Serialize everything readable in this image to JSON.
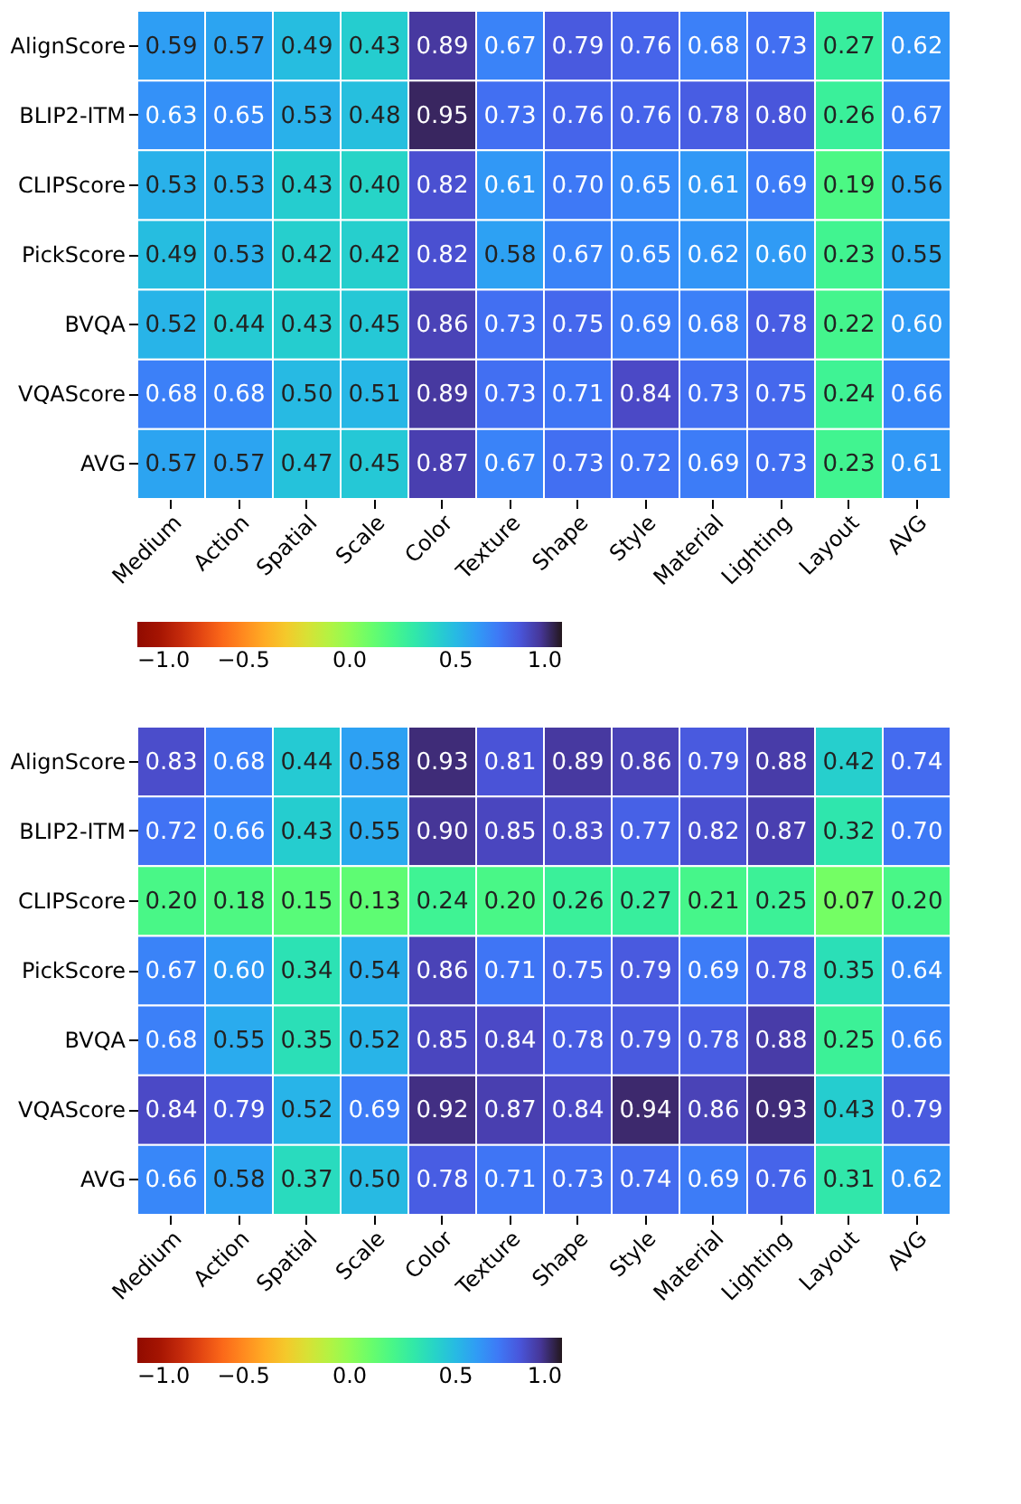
{
  "chart_data": [
    {
      "type": "heatmap",
      "categories": [
        "Medium",
        "Action",
        "Spatial",
        "Scale",
        "Color",
        "Texture",
        "Shape",
        "Style",
        "Material",
        "Lighting",
        "Layout",
        "AVG"
      ],
      "y_categories": [
        "AlignScore",
        "BLIP2-ITM",
        "CLIPScore",
        "PickScore",
        "BVQA",
        "VQAScore",
        "AVG"
      ],
      "cells": [
        [
          0.59,
          0.57,
          0.49,
          0.43,
          0.89,
          0.67,
          0.79,
          0.76,
          0.68,
          0.73,
          0.27,
          0.62
        ],
        [
          0.63,
          0.65,
          0.53,
          0.48,
          0.95,
          0.73,
          0.76,
          0.76,
          0.78,
          0.8,
          0.26,
          0.67
        ],
        [
          0.53,
          0.53,
          0.43,
          0.4,
          0.82,
          0.61,
          0.7,
          0.65,
          0.61,
          0.69,
          0.19,
          0.56
        ],
        [
          0.49,
          0.53,
          0.42,
          0.42,
          0.82,
          0.58,
          0.67,
          0.65,
          0.62,
          0.6,
          0.23,
          0.55
        ],
        [
          0.52,
          0.44,
          0.43,
          0.45,
          0.86,
          0.73,
          0.75,
          0.69,
          0.68,
          0.78,
          0.22,
          0.6
        ],
        [
          0.68,
          0.68,
          0.5,
          0.51,
          0.89,
          0.73,
          0.71,
          0.84,
          0.73,
          0.75,
          0.24,
          0.66
        ],
        [
          0.57,
          0.57,
          0.47,
          0.45,
          0.87,
          0.67,
          0.73,
          0.72,
          0.69,
          0.73,
          0.23,
          0.61
        ]
      ],
      "cell_labels": [
        [
          "0.59",
          "0.57",
          "0.49",
          "0.43",
          "0.89",
          "0.67",
          "0.79",
          "0.76",
          "0.68",
          "0.73",
          "0.27",
          "0.62"
        ],
        [
          "0.63",
          "0.65",
          "0.53",
          "0.48",
          "0.95",
          "0.73",
          "0.76",
          "0.76",
          "0.78",
          "0.80",
          "0.26",
          "0.67"
        ],
        [
          "0.53",
          "0.53",
          "0.43",
          "0.40",
          "0.82",
          "0.61",
          "0.70",
          "0.65",
          "0.61",
          "0.69",
          "0.19",
          "0.56"
        ],
        [
          "0.49",
          "0.53",
          "0.42",
          "0.42",
          "0.82",
          "0.58",
          "0.67",
          "0.65",
          "0.62",
          "0.60",
          "0.23",
          "0.55"
        ],
        [
          "0.52",
          "0.44",
          "0.43",
          "0.45",
          "0.86",
          "0.73",
          "0.75",
          "0.69",
          "0.68",
          "0.78",
          "0.22",
          "0.60"
        ],
        [
          "0.68",
          "0.68",
          "0.50",
          "0.51",
          "0.89",
          "0.73",
          "0.71",
          "0.84",
          "0.73",
          "0.75",
          "0.24",
          "0.66"
        ],
        [
          "0.57",
          "0.57",
          "0.47",
          "0.45",
          "0.87",
          "0.67",
          "0.73",
          "0.72",
          "0.69",
          "0.73",
          "0.23",
          "0.61"
        ]
      ],
      "clim": [
        -1,
        1
      ],
      "cticks": [
        {
          "value": -1,
          "label": "−1.0"
        },
        {
          "value": -0.5,
          "label": "−0.5"
        },
        {
          "value": 0,
          "label": "0.0"
        },
        {
          "value": 0.5,
          "label": "0.5"
        },
        {
          "value": 1,
          "label": "1.0"
        }
      ]
    },
    {
      "type": "heatmap",
      "categories": [
        "Medium",
        "Action",
        "Spatial",
        "Scale",
        "Color",
        "Texture",
        "Shape",
        "Style",
        "Material",
        "Lighting",
        "Layout",
        "AVG"
      ],
      "y_categories": [
        "AlignScore",
        "BLIP2-ITM",
        "CLIPScore",
        "PickScore",
        "BVQA",
        "VQAScore",
        "AVG"
      ],
      "cells": [
        [
          0.83,
          0.68,
          0.44,
          0.58,
          0.93,
          0.81,
          0.89,
          0.86,
          0.79,
          0.88,
          0.42,
          0.74
        ],
        [
          0.72,
          0.66,
          0.43,
          0.55,
          0.9,
          0.85,
          0.83,
          0.77,
          0.82,
          0.87,
          0.32,
          0.7
        ],
        [
          0.2,
          0.18,
          0.15,
          0.13,
          0.24,
          0.2,
          0.26,
          0.27,
          0.21,
          0.25,
          0.07,
          0.2
        ],
        [
          0.67,
          0.6,
          0.34,
          0.54,
          0.86,
          0.71,
          0.75,
          0.79,
          0.69,
          0.78,
          0.35,
          0.64
        ],
        [
          0.68,
          0.55,
          0.35,
          0.52,
          0.85,
          0.84,
          0.78,
          0.79,
          0.78,
          0.88,
          0.25,
          0.66
        ],
        [
          0.84,
          0.79,
          0.52,
          0.69,
          0.92,
          0.87,
          0.84,
          0.94,
          0.86,
          0.93,
          0.43,
          0.79
        ],
        [
          0.66,
          0.58,
          0.37,
          0.5,
          0.78,
          0.71,
          0.73,
          0.74,
          0.69,
          0.76,
          0.31,
          0.62
        ]
      ],
      "cell_labels": [
        [
          "0.83",
          "0.68",
          "0.44",
          "0.58",
          "0.93",
          "0.81",
          "0.89",
          "0.86",
          "0.79",
          "0.88",
          "0.42",
          "0.74"
        ],
        [
          "0.72",
          "0.66",
          "0.43",
          "0.55",
          "0.90",
          "0.85",
          "0.83",
          "0.77",
          "0.82",
          "0.87",
          "0.32",
          "0.70"
        ],
        [
          "0.20",
          "0.18",
          "0.15",
          "0.13",
          "0.24",
          "0.20",
          "0.26",
          "0.27",
          "0.21",
          "0.25",
          "0.07",
          "0.20"
        ],
        [
          "0.67",
          "0.60",
          "0.34",
          "0.54",
          "0.86",
          "0.71",
          "0.75",
          "0.79",
          "0.69",
          "0.78",
          "0.35",
          "0.64"
        ],
        [
          "0.68",
          "0.55",
          "0.35",
          "0.52",
          "0.85",
          "0.84",
          "0.78",
          "0.79",
          "0.78",
          "0.88",
          "0.25",
          "0.66"
        ],
        [
          "0.84",
          "0.79",
          "0.52",
          "0.69",
          "0.92",
          "0.87",
          "0.84",
          "0.94",
          "0.86",
          "0.93",
          "0.43",
          "0.79"
        ],
        [
          "0.66",
          "0.58",
          "0.37",
          "0.50",
          "0.78",
          "0.71",
          "0.73",
          "0.74",
          "0.69",
          "0.76",
          "0.31",
          "0.62"
        ]
      ],
      "clim": [
        -1,
        1
      ],
      "cticks": [
        {
          "value": -1,
          "label": "−1.0"
        },
        {
          "value": -0.5,
          "label": "−0.5"
        },
        {
          "value": 0,
          "label": "0.0"
        },
        {
          "value": 0.5,
          "label": "0.5"
        },
        {
          "value": 1,
          "label": "1.0"
        }
      ]
    }
  ]
}
